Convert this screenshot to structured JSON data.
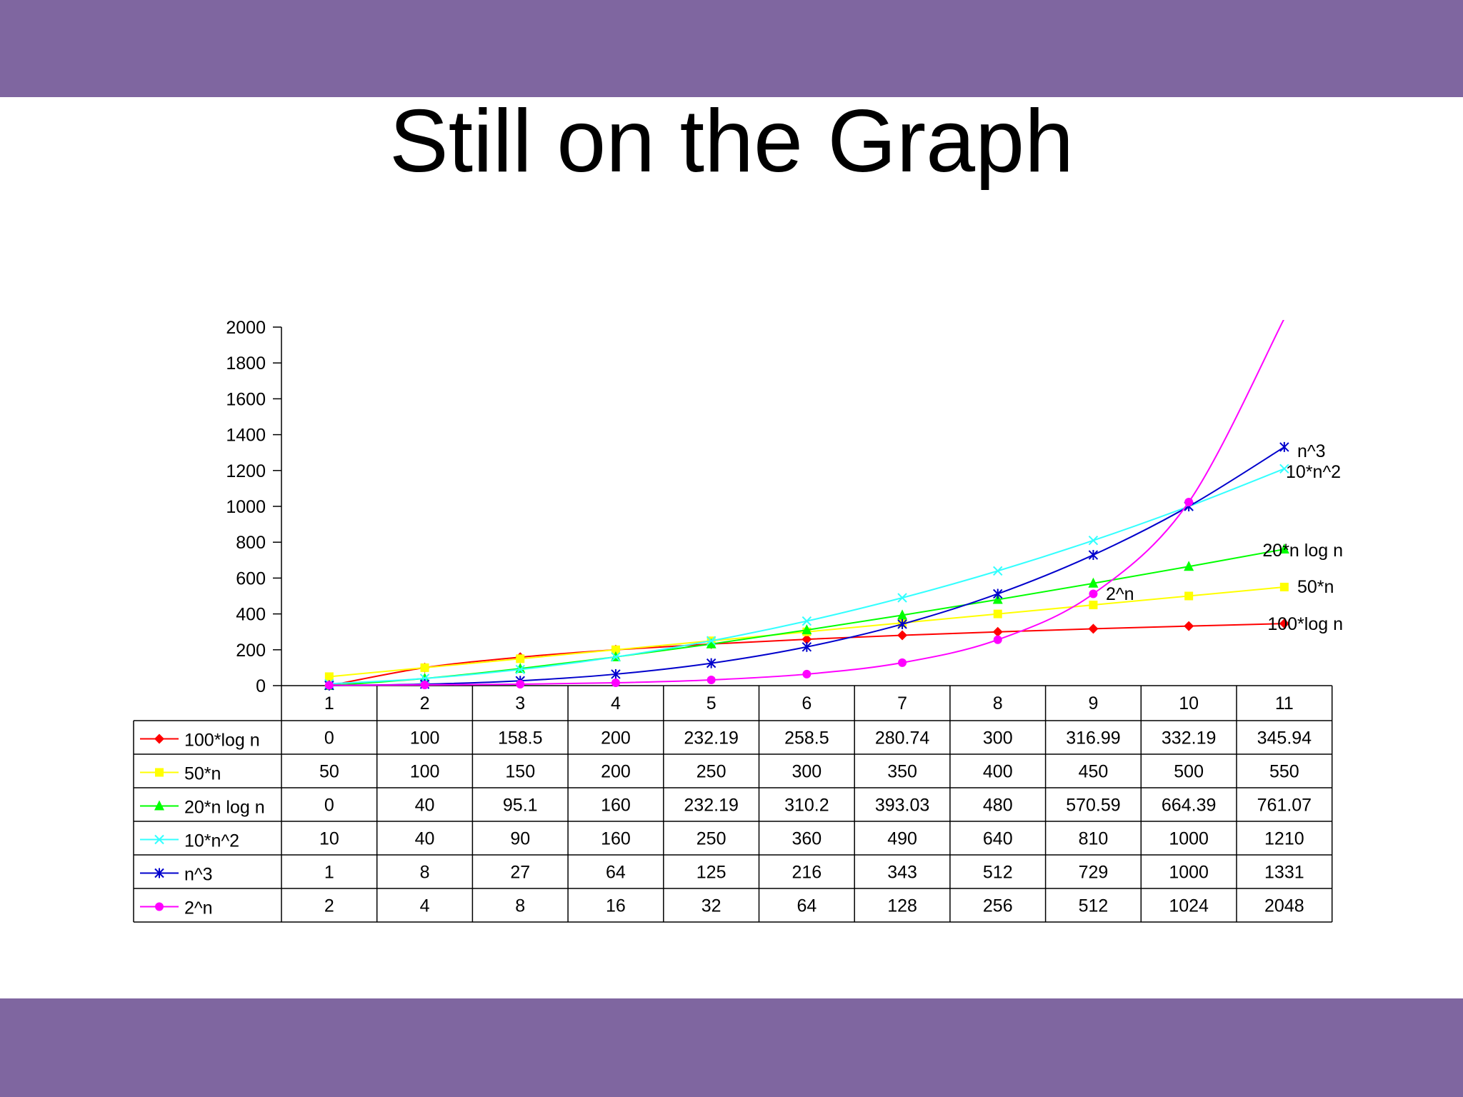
{
  "slide": {
    "title": "Still on the Graph"
  },
  "colors": {
    "band": "#7f66a0"
  },
  "chart_data": {
    "type": "line",
    "categories": [
      "1",
      "2",
      "3",
      "4",
      "5",
      "6",
      "7",
      "8",
      "9",
      "10",
      "11"
    ],
    "ylim": [
      0,
      2000
    ],
    "yticks": [
      0,
      200,
      400,
      600,
      800,
      1000,
      1200,
      1400,
      1600,
      1800,
      2000
    ],
    "series": [
      {
        "name": "100*log n",
        "color": "#ff0000",
        "marker": "diamond",
        "values": [
          0,
          100,
          158.5,
          200,
          232.19,
          258.5,
          280.74,
          300,
          316.99,
          332.19,
          345.94
        ],
        "cells": [
          "0",
          "100",
          "158.5",
          "200",
          "232.19",
          "258.5",
          "280.74",
          "300",
          "316.99",
          "332.19",
          "345.94"
        ]
      },
      {
        "name": "50*n",
        "color": "#ffff00",
        "marker": "square",
        "values": [
          50,
          100,
          150,
          200,
          250,
          300,
          350,
          400,
          450,
          500,
          550
        ],
        "cells": [
          "50",
          "100",
          "150",
          "200",
          "250",
          "300",
          "350",
          "400",
          "450",
          "500",
          "550"
        ]
      },
      {
        "name": "20*n log n",
        "color": "#00ff00",
        "marker": "triangle",
        "values": [
          0,
          40,
          95.1,
          160,
          232.19,
          310.2,
          393.03,
          480,
          570.59,
          664.39,
          761.07
        ],
        "cells": [
          "0",
          "40",
          "95.1",
          "160",
          "232.19",
          "310.2",
          "393.03",
          "480",
          "570.59",
          "664.39",
          "761.07"
        ]
      },
      {
        "name": "10*n^2",
        "color": "#33ffff",
        "marker": "x",
        "values": [
          10,
          40,
          90,
          160,
          250,
          360,
          490,
          640,
          810,
          1000,
          1210
        ],
        "cells": [
          "10",
          "40",
          "90",
          "160",
          "250",
          "360",
          "490",
          "640",
          "810",
          "1000",
          "1210"
        ]
      },
      {
        "name": "n^3",
        "color": "#0000cc",
        "marker": "asterisk",
        "values": [
          1,
          8,
          27,
          64,
          125,
          216,
          343,
          512,
          729,
          1000,
          1331
        ],
        "cells": [
          "1",
          "8",
          "27",
          "64",
          "125",
          "216",
          "343",
          "512",
          "729",
          "1000",
          "1331"
        ]
      },
      {
        "name": "2^n",
        "color": "#ff00ff",
        "marker": "circle",
        "values": [
          2,
          4,
          8,
          16,
          32,
          64,
          128,
          256,
          512,
          1024,
          2048
        ],
        "cells": [
          "2",
          "4",
          "8",
          "16",
          "32",
          "64",
          "128",
          "256",
          "512",
          "1024",
          "2048"
        ]
      }
    ],
    "curve_labels": [
      "n^3",
      "10*n^2",
      "20*n log n",
      "2^n",
      "50*n",
      "100*log n"
    ],
    "grid": false,
    "legend": "data-table"
  }
}
